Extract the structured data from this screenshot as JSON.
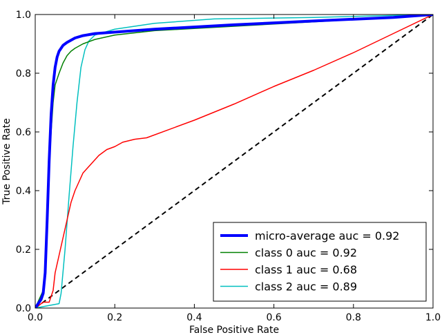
{
  "chart_data": {
    "type": "line",
    "xlabel": "False Positive Rate",
    "ylabel": "True Positive Rate",
    "xlim": [
      0.0,
      1.0
    ],
    "ylim": [
      0.0,
      1.0
    ],
    "x_ticks": [
      "0.0",
      "0.2",
      "0.4",
      "0.6",
      "0.8",
      "1.0"
    ],
    "y_ticks": [
      "0.0",
      "0.2",
      "0.4",
      "0.6",
      "0.8",
      "1.0"
    ],
    "grid": false,
    "legend_position": "lower-right",
    "reference_line": {
      "style": "dashed",
      "color": "#000000",
      "points": [
        [
          0,
          0
        ],
        [
          1,
          1
        ]
      ]
    },
    "series": [
      {
        "name": "micro-average auc = 0.92",
        "color": "#0000ff",
        "points": [
          [
            0,
            0
          ],
          [
            0.005,
            0.01
          ],
          [
            0.01,
            0.02
          ],
          [
            0.015,
            0.03
          ],
          [
            0.02,
            0.05
          ],
          [
            0.025,
            0.12
          ],
          [
            0.03,
            0.3
          ],
          [
            0.035,
            0.5
          ],
          [
            0.04,
            0.66
          ],
          [
            0.045,
            0.76
          ],
          [
            0.05,
            0.82
          ],
          [
            0.055,
            0.855
          ],
          [
            0.06,
            0.875
          ],
          [
            0.07,
            0.895
          ],
          [
            0.08,
            0.905
          ],
          [
            0.1,
            0.92
          ],
          [
            0.12,
            0.928
          ],
          [
            0.15,
            0.935
          ],
          [
            0.2,
            0.94
          ],
          [
            0.3,
            0.95
          ],
          [
            0.5,
            0.965
          ],
          [
            0.7,
            0.978
          ],
          [
            0.9,
            0.99
          ],
          [
            1.0,
            1.0
          ]
        ]
      },
      {
        "name": "class 0 auc = 0.92",
        "color": "#008000",
        "points": [
          [
            0,
            0
          ],
          [
            0.01,
            0.03
          ],
          [
            0.02,
            0.06
          ],
          [
            0.025,
            0.1
          ],
          [
            0.03,
            0.28
          ],
          [
            0.035,
            0.47
          ],
          [
            0.04,
            0.6
          ],
          [
            0.045,
            0.7
          ],
          [
            0.05,
            0.76
          ],
          [
            0.06,
            0.8
          ],
          [
            0.07,
            0.835
          ],
          [
            0.08,
            0.86
          ],
          [
            0.09,
            0.875
          ],
          [
            0.1,
            0.885
          ],
          [
            0.12,
            0.9
          ],
          [
            0.15,
            0.915
          ],
          [
            0.2,
            0.93
          ],
          [
            0.3,
            0.945
          ],
          [
            0.5,
            0.96
          ],
          [
            0.7,
            0.975
          ],
          [
            0.9,
            0.99
          ],
          [
            1.0,
            1.0
          ]
        ]
      },
      {
        "name": "class 1 auc = 0.68",
        "color": "#ff0000",
        "points": [
          [
            0,
            0
          ],
          [
            0.02,
            0.02
          ],
          [
            0.035,
            0.02
          ],
          [
            0.045,
            0.06
          ],
          [
            0.05,
            0.12
          ],
          [
            0.06,
            0.18
          ],
          [
            0.07,
            0.24
          ],
          [
            0.08,
            0.3
          ],
          [
            0.09,
            0.36
          ],
          [
            0.1,
            0.4
          ],
          [
            0.11,
            0.43
          ],
          [
            0.12,
            0.46
          ],
          [
            0.14,
            0.49
          ],
          [
            0.16,
            0.52
          ],
          [
            0.18,
            0.54
          ],
          [
            0.2,
            0.55
          ],
          [
            0.22,
            0.565
          ],
          [
            0.25,
            0.575
          ],
          [
            0.28,
            0.58
          ],
          [
            0.4,
            0.64
          ],
          [
            0.5,
            0.695
          ],
          [
            0.6,
            0.755
          ],
          [
            0.7,
            0.81
          ],
          [
            0.8,
            0.87
          ],
          [
            0.9,
            0.935
          ],
          [
            1.0,
            1.0
          ]
        ]
      },
      {
        "name": "class 2 auc = 0.89",
        "color": "#00bfbf",
        "points": [
          [
            0,
            0
          ],
          [
            0.02,
            0.005
          ],
          [
            0.04,
            0.01
          ],
          [
            0.06,
            0.015
          ],
          [
            0.065,
            0.05
          ],
          [
            0.075,
            0.2
          ],
          [
            0.085,
            0.38
          ],
          [
            0.095,
            0.55
          ],
          [
            0.105,
            0.7
          ],
          [
            0.115,
            0.82
          ],
          [
            0.125,
            0.88
          ],
          [
            0.135,
            0.91
          ],
          [
            0.15,
            0.93
          ],
          [
            0.2,
            0.95
          ],
          [
            0.3,
            0.97
          ],
          [
            0.45,
            0.985
          ],
          [
            0.7,
            0.99
          ],
          [
            1.0,
            1.0
          ]
        ]
      }
    ]
  }
}
